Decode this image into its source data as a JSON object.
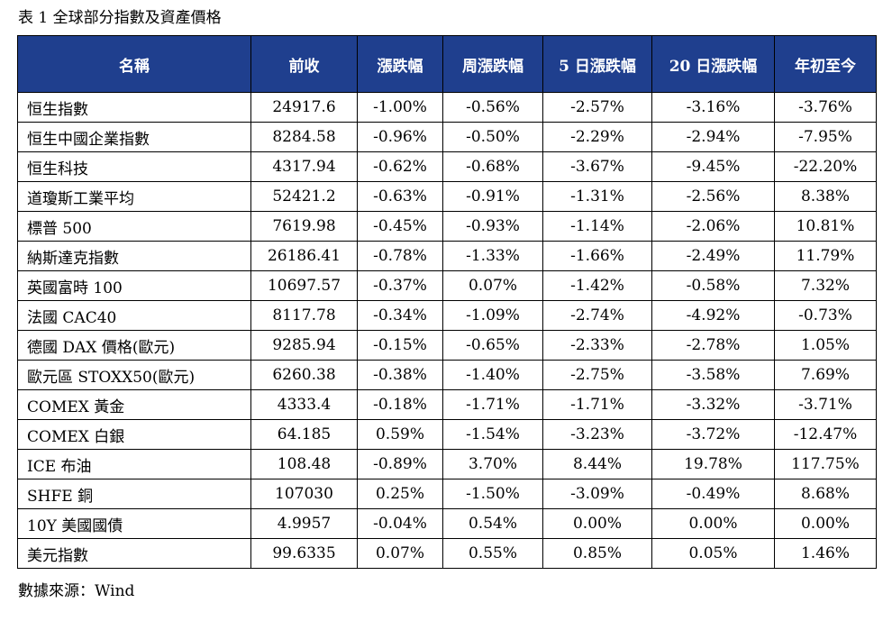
{
  "caption": "表 1 全球部分指數及資產價格",
  "columns": [
    "名稱",
    "前收",
    "漲跌幅",
    "周漲跌幅",
    "5 日漲跌幅",
    "20 日漲跌幅",
    "年初至今"
  ],
  "rows": [
    [
      "恒生指數",
      "24917.6",
      "-1.00%",
      "-0.56%",
      "-2.57%",
      "-3.16%",
      "-3.76%"
    ],
    [
      "恒生中國企業指數",
      "8284.58",
      "-0.96%",
      "-0.50%",
      "-2.29%",
      "-2.94%",
      "-7.95%"
    ],
    [
      "恒生科技",
      "4317.94",
      "-0.62%",
      "-0.68%",
      "-3.67%",
      "-9.45%",
      "-22.20%"
    ],
    [
      "道瓊斯工業平均",
      "52421.2",
      "-0.63%",
      "-0.91%",
      "-1.31%",
      "-2.56%",
      "8.38%"
    ],
    [
      "標普 500",
      "7619.98",
      "-0.45%",
      "-0.93%",
      "-1.14%",
      "-2.06%",
      "10.81%"
    ],
    [
      "納斯達克指數",
      "26186.41",
      "-0.78%",
      "-1.33%",
      "-1.66%",
      "-2.49%",
      "11.79%"
    ],
    [
      "英國富時 100",
      "10697.57",
      "-0.37%",
      "0.07%",
      "-1.42%",
      "-0.58%",
      "7.32%"
    ],
    [
      "法國 CAC40",
      "8117.78",
      "-0.34%",
      "-1.09%",
      "-2.74%",
      "-4.92%",
      "-0.73%"
    ],
    [
      "德國 DAX 價格(歐元)",
      "9285.94",
      "-0.15%",
      "-0.65%",
      "-2.33%",
      "-2.78%",
      "1.05%"
    ],
    [
      "歐元區 STOXX50(歐元)",
      "6260.38",
      "-0.38%",
      "-1.40%",
      "-2.75%",
      "-3.58%",
      "7.69%"
    ],
    [
      "COMEX 黃金",
      "4333.4",
      "-0.18%",
      "-1.71%",
      "-1.71%",
      "-3.32%",
      "-3.71%"
    ],
    [
      "COMEX 白銀",
      "64.185",
      "0.59%",
      "-1.54%",
      "-3.23%",
      "-3.72%",
      "-12.47%"
    ],
    [
      "ICE 布油",
      "108.48",
      "-0.89%",
      "3.70%",
      "8.44%",
      "19.78%",
      "117.75%"
    ],
    [
      "SHFE 銅",
      "107030",
      "0.25%",
      "-1.50%",
      "-3.09%",
      "-0.49%",
      "8.68%"
    ],
    [
      "10Y  美國國債",
      "4.9957",
      "-0.04%",
      "0.54%",
      "0.00%",
      "0.00%",
      "0.00%"
    ],
    [
      "美元指數",
      "99.6335",
      "0.07%",
      "0.55%",
      "0.85%",
      "0.05%",
      "1.46%"
    ]
  ],
  "source": "數據來源：Wind",
  "colors": {
    "header_bg": "#1f3f8e",
    "header_text": "#ffffff",
    "border": "#000000"
  }
}
